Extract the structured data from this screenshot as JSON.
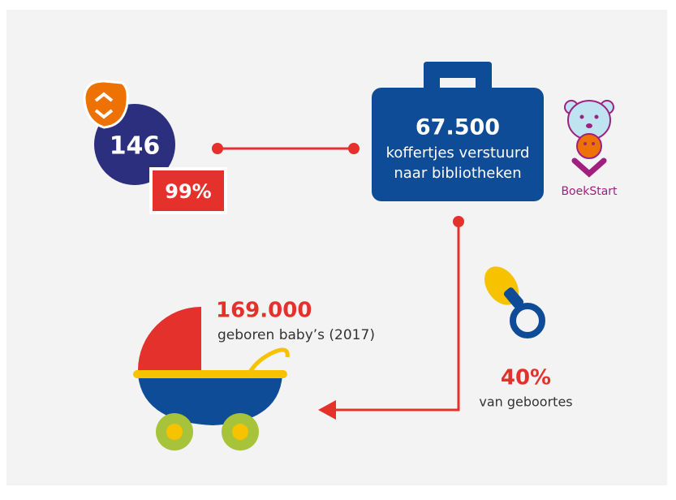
{
  "nodes": {
    "municipality": {
      "number": "146",
      "share": "99%"
    },
    "suitcase": {
      "number": "67.500",
      "line1": "koffertjes verstuurd",
      "line2": "naar bibliotheken"
    },
    "brand": {
      "label": "BoekStart"
    },
    "births": {
      "number": "169.000",
      "label": "geboren baby’s (2017)"
    },
    "share_of_births": {
      "number": "40%",
      "label": "van geboortes"
    }
  }
}
